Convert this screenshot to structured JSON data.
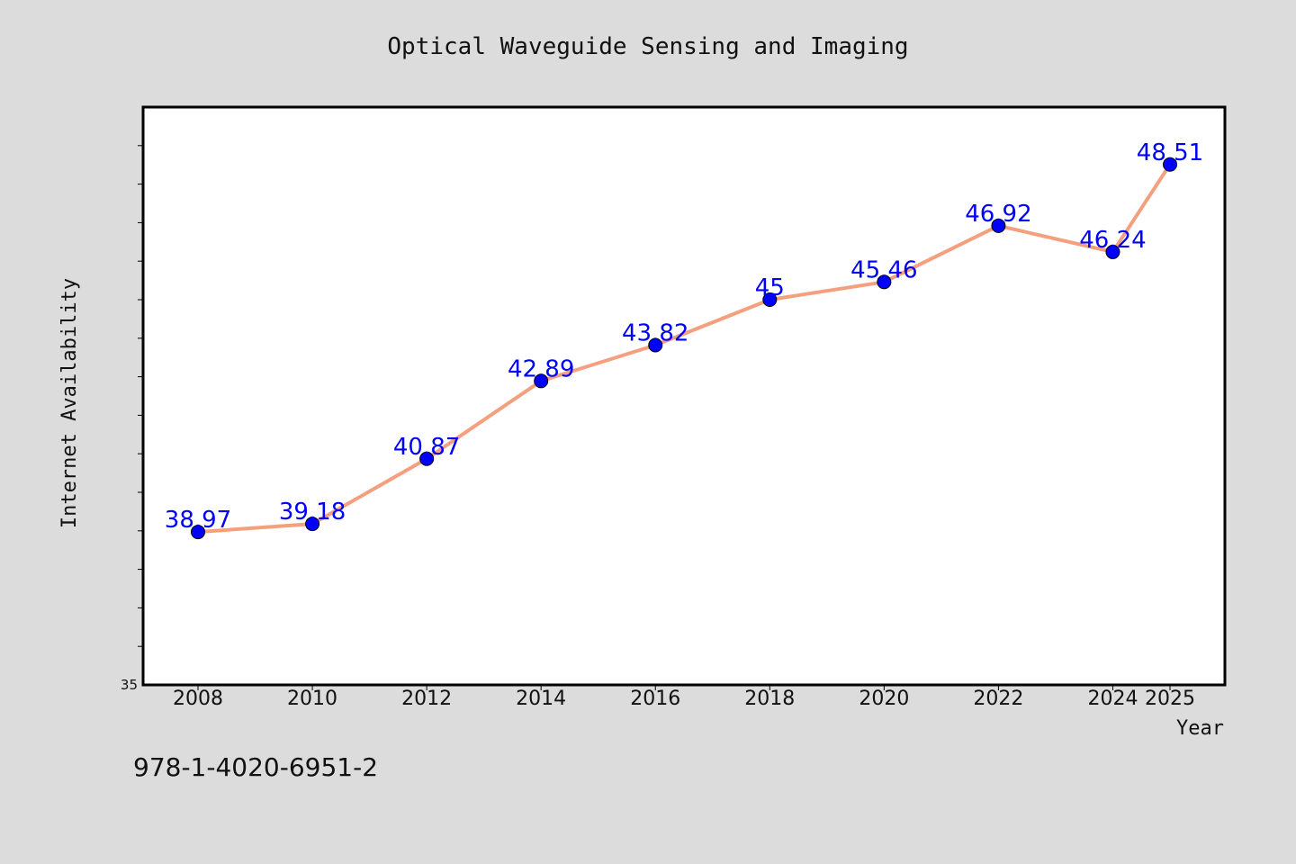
{
  "chart_data": {
    "type": "line",
    "title": "Optical Waveguide Sensing and Imaging",
    "xlabel": "Year",
    "ylabel": "Internet Availability",
    "x": [
      "2008",
      "2010",
      "2012",
      "2014",
      "2016",
      "2018",
      "2020",
      "2022",
      "2024",
      "2025"
    ],
    "series": [
      {
        "values": [
          38.97,
          39.18,
          40.87,
          42.89,
          43.82,
          45,
          45.46,
          46.92,
          46.24,
          48.51
        ],
        "labels": [
          "38.97",
          "39.18",
          "40.87",
          "42.89",
          "43.82",
          "45",
          "45.46",
          "46.92",
          "46.24",
          "48.51"
        ]
      }
    ],
    "yticks": [
      "35"
    ],
    "ylim": [
      35,
      50
    ],
    "grid": false,
    "line_color": "#f4a07f",
    "marker_color": "#0000ff",
    "label_color": "#0000ff"
  },
  "footer": {
    "code": "978-1-4020-6951-2"
  }
}
